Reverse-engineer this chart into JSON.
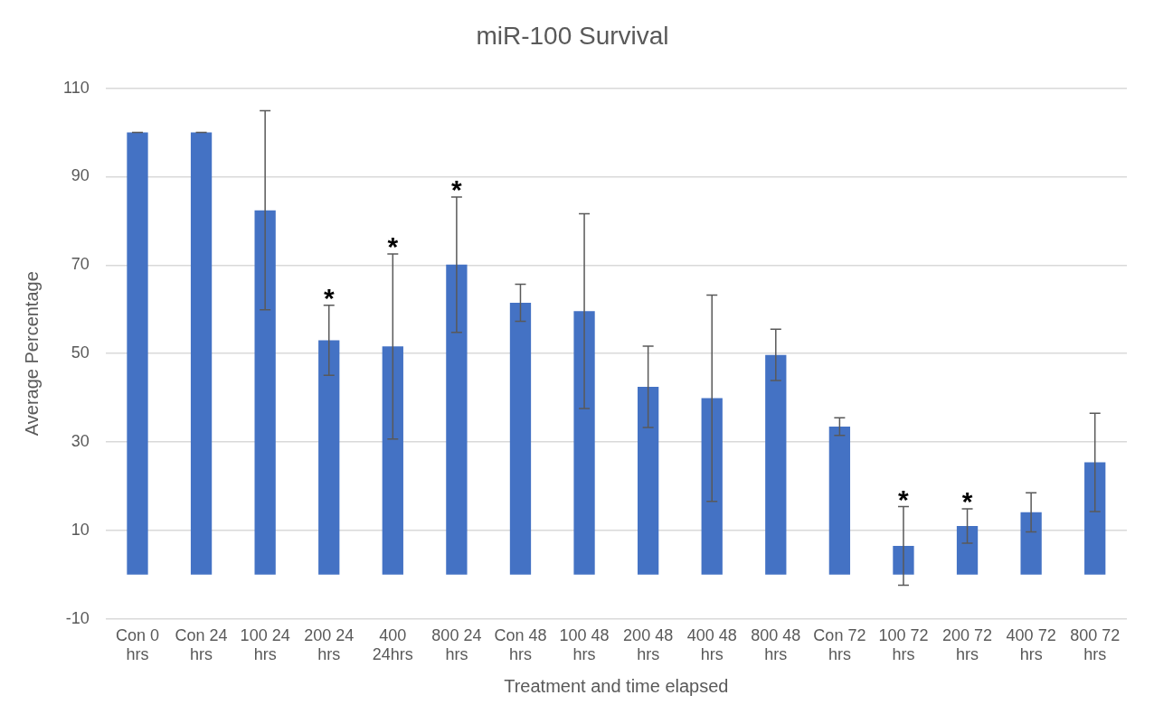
{
  "chart_data": {
    "type": "bar",
    "title": "miR-100 Survival",
    "xlabel": "Treatment and time elapsed",
    "ylabel": "Average Percentage",
    "categories": [
      "Con 0 hrs",
      "Con 24 hrs",
      "100 24 hrs",
      "200 24 hrs",
      "400 24hrs",
      "800 24 hrs",
      "Con 48 hrs",
      "100 48 hrs",
      "200 48 hrs",
      "400 48 hrs",
      "800 48 hrs",
      "Con 72 hrs",
      "100 72 hrs",
      "200 72 hrs",
      "400 72 hrs",
      "800 72 hrs"
    ],
    "values": [
      100,
      100,
      82.4,
      53.0,
      51.6,
      70.1,
      61.5,
      59.6,
      42.5,
      39.9,
      49.7,
      33.5,
      6.5,
      11.0,
      14.1,
      25.4
    ],
    "errors": [
      0,
      0,
      22.5,
      7.9,
      20.9,
      15.3,
      4.2,
      22,
      9.2,
      23.3,
      5.8,
      2,
      8.9,
      3.9,
      4.4,
      11.1
    ],
    "color": "#4472c4",
    "ylim": [
      -10,
      110
    ],
    "yticks": [
      -10,
      10,
      30,
      50,
      70,
      90,
      110
    ],
    "grid": "y",
    "annotations": [
      {
        "text": "*",
        "x": "200 24 hrs",
        "y": 60.9
      },
      {
        "text": "*",
        "x": "400 24hrs",
        "y": 72.5
      },
      {
        "text": "*",
        "x": "800 24 hrs",
        "y": 85.4
      },
      {
        "text": "*",
        "x": "100 72 hrs",
        "y": 15.4
      },
      {
        "text": "*",
        "x": "200 72 hrs",
        "y": 14.9
      }
    ]
  }
}
